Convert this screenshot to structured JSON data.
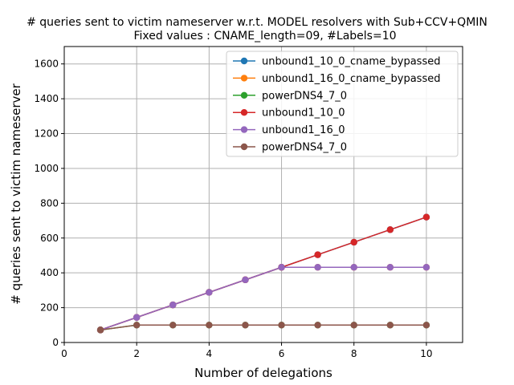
{
  "chart_data": {
    "type": "line",
    "title": "# queries sent to victim nameserver w.r.t. MODEL resolvers with Sub+CCV+QMIN",
    "subtitle": "Fixed values : CNAME_length=09, #Labels=10",
    "xlabel": "Number of delegations",
    "ylabel": "# queries sent to victim nameserver",
    "xlim": [
      0,
      11
    ],
    "ylim": [
      0,
      1700
    ],
    "xticks": [
      0,
      2,
      4,
      6,
      8,
      10
    ],
    "yticks": [
      0,
      200,
      400,
      600,
      800,
      1000,
      1200,
      1400,
      1600
    ],
    "grid": true,
    "legend_position": "upper right",
    "x": [
      1,
      2,
      3,
      4,
      5,
      6,
      7,
      8,
      9,
      10
    ],
    "series": [
      {
        "name": "unbound1_10_0_cname_bypassed",
        "color": "#1f77b4",
        "values": [
          72,
          144,
          216,
          288,
          360,
          432,
          504,
          576,
          648,
          720
        ]
      },
      {
        "name": "unbound1_16_0_cname_bypassed",
        "color": "#ff7f0e",
        "values": [
          72,
          144,
          216,
          288,
          360,
          432,
          432,
          432,
          432,
          432
        ]
      },
      {
        "name": "powerDNS4_7_0",
        "color": "#2ca02c",
        "values": [
          72,
          100,
          100,
          100,
          100,
          100,
          100,
          100,
          100,
          100
        ]
      },
      {
        "name": "unbound1_10_0",
        "color": "#d62728",
        "values": [
          72,
          144,
          216,
          288,
          360,
          432,
          504,
          576,
          648,
          720
        ]
      },
      {
        "name": "unbound1_16_0",
        "color": "#9467bd",
        "values": [
          72,
          144,
          216,
          288,
          360,
          432,
          432,
          432,
          432,
          432
        ]
      },
      {
        "name": "powerDNS4_7_0",
        "color": "#8c564b",
        "values": [
          72,
          100,
          100,
          100,
          100,
          100,
          100,
          100,
          100,
          100
        ]
      }
    ]
  }
}
